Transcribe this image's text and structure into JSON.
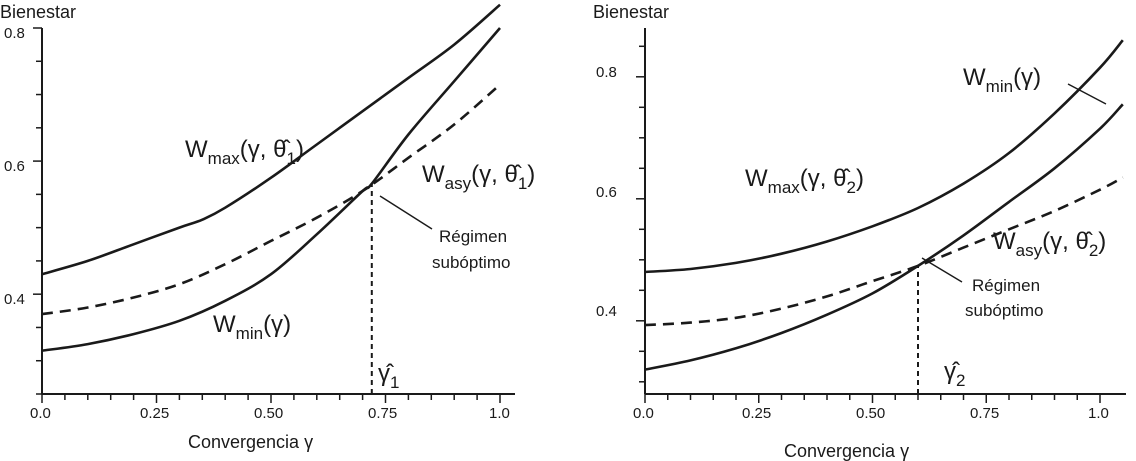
{
  "chart_data": [
    {
      "type": "line",
      "xlabel": "Convergencia γ",
      "ylabel": "Bienestar",
      "xlim": [
        0,
        1.0
      ],
      "ylim": [
        0.25,
        0.8
      ],
      "x_ticks": [
        0.0,
        0.25,
        0.5,
        0.75,
        1.0
      ],
      "x_tick_labels": [
        "0.0",
        "0.25",
        "0.50",
        "0.75",
        "1.0"
      ],
      "y_ticks": [
        0.4,
        0.6,
        0.8
      ],
      "y_tick_labels": [
        "0.4",
        "0.6",
        "0.8"
      ],
      "series": [
        {
          "label_main": "W",
          "label_sub": "max",
          "label_args": "(γ, θ̂",
          "label_index": "1",
          "label_close": ")",
          "style": "solid",
          "x": [
            0.0,
            0.1,
            0.2,
            0.3,
            0.35,
            0.4,
            0.5,
            0.6,
            0.7,
            0.8,
            0.9,
            1.0
          ],
          "y": [
            0.43,
            0.45,
            0.475,
            0.5,
            0.512,
            0.53,
            0.575,
            0.625,
            0.675,
            0.725,
            0.775,
            0.835
          ]
        },
        {
          "label_main": "W",
          "label_sub": "asy",
          "label_args": "(γ, θ̂",
          "label_index": "1",
          "label_close": ")",
          "style": "dashed",
          "x": [
            0.0,
            0.1,
            0.2,
            0.3,
            0.4,
            0.5,
            0.6,
            0.7,
            0.8,
            0.9,
            1.0
          ],
          "y": [
            0.37,
            0.38,
            0.395,
            0.415,
            0.445,
            0.48,
            0.515,
            0.555,
            0.605,
            0.655,
            0.715
          ]
        },
        {
          "label_main": "W",
          "label_sub": "min",
          "label_args": "(γ",
          "label_close": ")",
          "style": "solid",
          "x": [
            0.0,
            0.1,
            0.2,
            0.3,
            0.4,
            0.5,
            0.6,
            0.7,
            0.72,
            0.8,
            0.9,
            1.0
          ],
          "y": [
            0.315,
            0.325,
            0.34,
            0.36,
            0.39,
            0.43,
            0.49,
            0.555,
            0.566,
            0.64,
            0.72,
            0.8
          ]
        }
      ],
      "marker": {
        "x": 0.72,
        "y": 0.566,
        "label_main": "γ̂",
        "label_index": "1"
      },
      "annotation": {
        "line1": "Régimen",
        "line2": "subóptimo"
      }
    },
    {
      "type": "line",
      "xlabel": "Convergencia γ",
      "ylabel": "Bienestar",
      "xlim": [
        0,
        1.05
      ],
      "ylim": [
        0.28,
        0.88
      ],
      "x_ticks": [
        0.0,
        0.25,
        0.5,
        0.75,
        1.0
      ],
      "x_tick_labels": [
        "0.0",
        "0.25",
        "0.50",
        "0.75",
        "1.0"
      ],
      "y_ticks": [
        0.4,
        0.6,
        0.8
      ],
      "y_tick_labels": [
        "0.4",
        "0.6",
        "0.8"
      ],
      "series": [
        {
          "label_main": "W",
          "label_sub": "min",
          "label_args": "(γ",
          "label_close": ")",
          "style": "solid",
          "x": [
            0.0,
            0.1,
            0.2,
            0.3,
            0.4,
            0.5,
            0.6,
            0.7,
            0.8,
            0.9,
            1.0,
            1.05
          ],
          "y": [
            0.48,
            0.485,
            0.495,
            0.51,
            0.53,
            0.555,
            0.585,
            0.625,
            0.675,
            0.74,
            0.815,
            0.86
          ]
        },
        {
          "label_main": "W",
          "label_sub": "max",
          "label_args": "(γ, θ̂",
          "label_index": "2",
          "label_close": ")",
          "style": "solid",
          "x": [
            0.0,
            0.1,
            0.2,
            0.3,
            0.4,
            0.5,
            0.6,
            0.7,
            0.8,
            0.9,
            1.0,
            1.05
          ],
          "y": [
            0.32,
            0.335,
            0.355,
            0.38,
            0.41,
            0.445,
            0.49,
            0.54,
            0.595,
            0.65,
            0.715,
            0.755
          ]
        },
        {
          "label_main": "W",
          "label_sub": "asy",
          "label_args": "(γ, θ̂",
          "label_index": "2",
          "label_close": ")",
          "style": "dashed",
          "x": [
            0.0,
            0.1,
            0.2,
            0.3,
            0.4,
            0.5,
            0.6,
            0.7,
            0.8,
            0.9,
            1.0,
            1.05
          ],
          "y": [
            0.393,
            0.397,
            0.405,
            0.42,
            0.44,
            0.465,
            0.49,
            0.52,
            0.55,
            0.58,
            0.615,
            0.635
          ]
        }
      ],
      "marker": {
        "x": 0.6,
        "y": 0.49,
        "label_main": "γ̂",
        "label_index": "2"
      },
      "annotation": {
        "line1": "Régimen",
        "line2": "subóptimo"
      }
    }
  ]
}
